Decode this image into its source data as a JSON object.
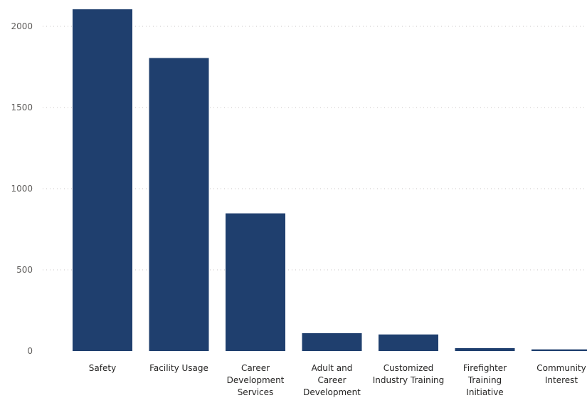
{
  "chart_data": {
    "type": "bar",
    "categories": [
      [
        "Safety"
      ],
      [
        "Facility Usage"
      ],
      [
        "Career",
        "Development",
        "Services"
      ],
      [
        "Adult and",
        "Career",
        "Development"
      ],
      [
        "Customized",
        "Industry Training"
      ],
      [
        "Firefighter",
        "Training",
        "Initiative"
      ],
      [
        "Community",
        "Interest"
      ]
    ],
    "values": [
      2105,
      1805,
      848,
      110,
      102,
      18,
      10
    ],
    "y_ticks": [
      0,
      500,
      1000,
      1500,
      2000
    ],
    "ylim": [
      0,
      2105
    ],
    "grid": true,
    "title": "",
    "xlabel": "",
    "ylabel": "",
    "bar_color": "#1f3f6e",
    "grid_color": "#c8c6c4"
  }
}
